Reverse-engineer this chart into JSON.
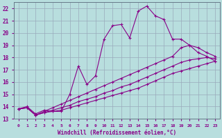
{
  "xlabel": "Windchill (Refroidissement éolien,°C)",
  "xlim": [
    -0.5,
    23.5
  ],
  "ylim": [
    13,
    22.5
  ],
  "xticks": [
    0,
    1,
    2,
    3,
    4,
    5,
    6,
    7,
    8,
    9,
    10,
    11,
    12,
    13,
    14,
    15,
    16,
    17,
    18,
    19,
    20,
    21,
    22,
    23
  ],
  "yticks": [
    13,
    14,
    15,
    16,
    17,
    18,
    19,
    20,
    21,
    22
  ],
  "bg_color": "#b8dede",
  "line_color": "#880088",
  "grid_color": "#99aabb",
  "lines": [
    {
      "x": [
        0,
        1,
        2,
        3,
        4,
        5,
        6,
        7,
        8,
        9,
        10,
        11,
        12,
        13,
        14,
        15,
        16,
        17,
        18,
        19,
        20,
        21,
        22,
        23
      ],
      "y": [
        13.8,
        14.0,
        13.4,
        13.7,
        13.6,
        13.6,
        15.0,
        17.3,
        15.8,
        16.5,
        19.5,
        20.6,
        20.7,
        19.6,
        21.8,
        22.2,
        21.4,
        21.1,
        19.5,
        19.5,
        19.0,
        18.4,
        18.1,
        17.7
      ]
    },
    {
      "x": [
        0,
        1,
        2,
        3,
        4,
        5,
        6,
        7,
        8,
        9,
        10,
        11,
        12,
        13,
        14,
        15,
        16,
        17,
        18,
        19,
        20,
        21,
        22,
        23
      ],
      "y": [
        13.8,
        13.9,
        13.3,
        13.6,
        13.9,
        14.2,
        14.5,
        14.8,
        15.1,
        15.4,
        15.7,
        16.0,
        16.3,
        16.6,
        16.9,
        17.2,
        17.5,
        17.8,
        18.1,
        18.8,
        19.0,
        18.8,
        18.4,
        18.1
      ]
    },
    {
      "x": [
        0,
        1,
        2,
        3,
        4,
        5,
        6,
        7,
        8,
        9,
        10,
        11,
        12,
        13,
        14,
        15,
        16,
        17,
        18,
        19,
        20,
        21,
        22,
        23
      ],
      "y": [
        13.8,
        13.9,
        13.3,
        13.5,
        13.7,
        13.9,
        14.1,
        14.4,
        14.6,
        14.8,
        15.1,
        15.3,
        15.6,
        15.8,
        16.1,
        16.4,
        16.7,
        17.0,
        17.3,
        17.6,
        17.8,
        17.9,
        18.0,
        17.9
      ]
    },
    {
      "x": [
        0,
        1,
        2,
        3,
        4,
        5,
        6,
        7,
        8,
        9,
        10,
        11,
        12,
        13,
        14,
        15,
        16,
        17,
        18,
        19,
        20,
        21,
        22,
        23
      ],
      "y": [
        13.8,
        13.9,
        13.3,
        13.5,
        13.6,
        13.7,
        13.9,
        14.1,
        14.3,
        14.5,
        14.7,
        14.9,
        15.1,
        15.3,
        15.5,
        15.8,
        16.1,
        16.4,
        16.7,
        16.9,
        17.1,
        17.3,
        17.5,
        17.7
      ]
    }
  ]
}
